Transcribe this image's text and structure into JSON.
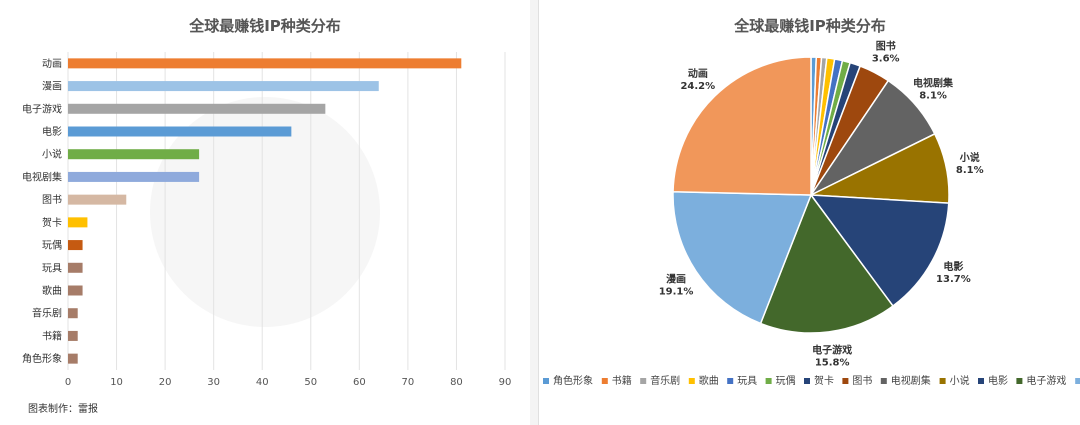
{
  "left_chart": {
    "credit": "图表制作：雷报"
  },
  "watermark": "雷报",
  "chart_data": [
    {
      "type": "bar",
      "orientation": "horizontal",
      "title": "全球最赚钱IP种类分布",
      "categories": [
        "动画",
        "漫画",
        "电子游戏",
        "电影",
        "小说",
        "电视剧集",
        "图书",
        "贺卡",
        "玩偶",
        "玩具",
        "歌曲",
        "音乐剧",
        "书籍",
        "角色形象"
      ],
      "values": [
        81,
        64,
        53,
        46,
        27,
        27,
        12,
        4,
        3,
        3,
        3,
        2,
        2,
        2
      ],
      "colors": [
        "#ED7D31",
        "#9DC3E6",
        "#A5A5A5",
        "#5B9BD5",
        "#70AD47",
        "#8FAADC",
        "#D5B8A3",
        "#FFC000",
        "#C55A11",
        "#A67C68",
        "#A67C68",
        "#A67C68",
        "#A67C68",
        "#A67C68"
      ],
      "xlim": [
        0,
        90
      ],
      "xticks": [
        0,
        10,
        20,
        30,
        40,
        50,
        60,
        70,
        80,
        90
      ],
      "grid": true
    },
    {
      "type": "pie",
      "title": "全球最赚钱IP种类分布",
      "legend_position": "bottom",
      "slices": [
        {
          "name": "角色形象",
          "value": 0.6,
          "color": "#5B9BD5"
        },
        {
          "name": "书籍",
          "value": 0.6,
          "color": "#ED7D31"
        },
        {
          "name": "音乐剧",
          "value": 0.6,
          "color": "#A5A5A5"
        },
        {
          "name": "歌曲",
          "value": 0.9,
          "color": "#FFC000"
        },
        {
          "name": "玩具",
          "value": 0.9,
          "color": "#4472C4"
        },
        {
          "name": "玩偶",
          "value": 0.9,
          "color": "#70AD47"
        },
        {
          "name": "贺卡",
          "value": 1.2,
          "color": "#264478"
        },
        {
          "name": "图书",
          "value": 3.6,
          "color": "#9E480E",
          "label": "3.6%"
        },
        {
          "name": "电视剧集",
          "value": 8.1,
          "color": "#636363",
          "label": "8.1%"
        },
        {
          "name": "小说",
          "value": 8.1,
          "color": "#997300",
          "label": "8.1%"
        },
        {
          "name": "电影",
          "value": 13.7,
          "color": "#264478",
          "label": "13.7%"
        },
        {
          "name": "电子游戏",
          "value": 15.8,
          "color": "#43682B",
          "label": "15.8%"
        },
        {
          "name": "漫画",
          "value": 19.1,
          "color": "#7CAFDD",
          "label": "19.1%"
        },
        {
          "name": "动画",
          "value": 24.2,
          "color": "#F1975A",
          "label": "24.2%"
        }
      ]
    }
  ]
}
